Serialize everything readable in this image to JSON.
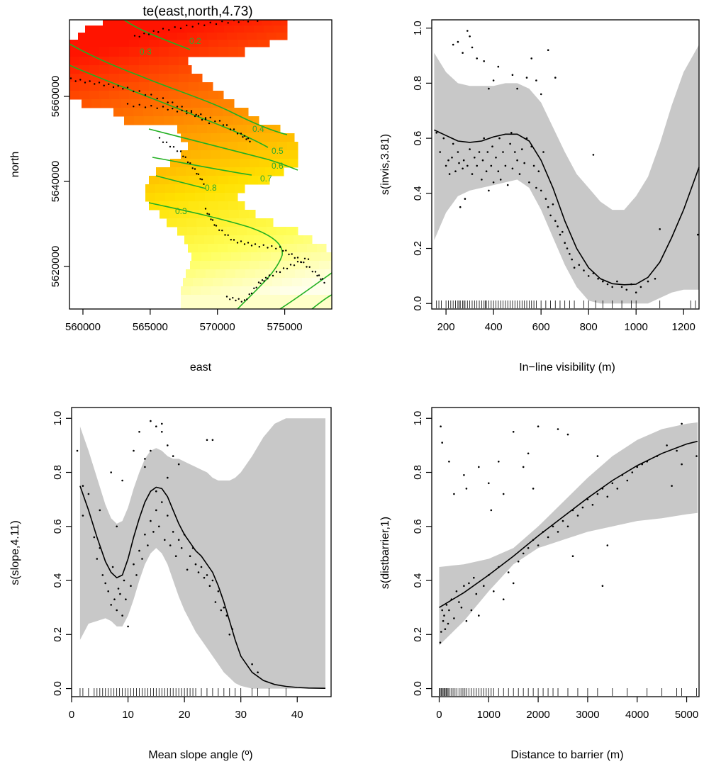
{
  "chart_data": [
    {
      "type": "heatmap",
      "title": "te(east,north,4.73)",
      "xlabel": "east",
      "ylabel": "north",
      "xlim": [
        559000,
        578500
      ],
      "ylim": [
        5610000,
        5678000
      ],
      "xticks": [
        560000,
        565000,
        570000,
        575000
      ],
      "xtick_labels": [
        "560000",
        "565000",
        "570000",
        "575000"
      ],
      "yticks": [
        5620000,
        5640000,
        5660000
      ],
      "ytick_labels": [
        "5620000",
        "5640000",
        "5660000"
      ],
      "colors": {
        "low": "#ffffff",
        "mid": "#ffff00",
        "high": "#ff0000"
      },
      "contour_labels": [
        "0.2",
        "0.3",
        "0.4",
        "0.5",
        "0.6",
        "0.7",
        "0.8",
        "0.3"
      ],
      "grid": false
    },
    {
      "type": "line",
      "xlabel": "In−line visibility (m)",
      "ylabel": "s(invis,3.81)",
      "xlim": [
        140,
        1265
      ],
      "ylim": [
        -0.02,
        1.03
      ],
      "xticks": [
        200,
        400,
        600,
        800,
        1000,
        1200
      ],
      "xtick_labels": [
        "200",
        "400",
        "600",
        "800",
        "1000",
        "1200"
      ],
      "yticks": [
        0.0,
        0.2,
        0.4,
        0.6,
        0.8,
        1.0
      ],
      "ytick_labels": [
        "0.0",
        "0.2",
        "0.4",
        "0.6",
        "0.8",
        "1.0"
      ],
      "fit": {
        "x": [
          150,
          200,
          250,
          300,
          350,
          400,
          450,
          500,
          550,
          600,
          650,
          700,
          750,
          800,
          850,
          900,
          950,
          1000,
          1050,
          1100,
          1150,
          1200,
          1265
        ],
        "y": [
          0.63,
          0.61,
          0.59,
          0.585,
          0.59,
          0.605,
          0.615,
          0.615,
          0.59,
          0.52,
          0.42,
          0.3,
          0.2,
          0.13,
          0.09,
          0.072,
          0.068,
          0.07,
          0.095,
          0.15,
          0.24,
          0.34,
          0.495
        ]
      },
      "band_upper": [
        0.91,
        0.84,
        0.8,
        0.79,
        0.79,
        0.79,
        0.8,
        0.8,
        0.78,
        0.73,
        0.64,
        0.55,
        0.47,
        0.42,
        0.37,
        0.34,
        0.34,
        0.39,
        0.46,
        0.58,
        0.72,
        0.84,
        0.94
      ],
      "band_lower": [
        0.23,
        0.33,
        0.39,
        0.41,
        0.42,
        0.43,
        0.44,
        0.45,
        0.42,
        0.34,
        0.24,
        0.14,
        0.06,
        0.01,
        0.0,
        0.0,
        0.0,
        0.0,
        0.0,
        0.02,
        0.04,
        0.05,
        0.05
      ],
      "points": {
        "x": [
          160,
          175,
          190,
          200,
          210,
          215,
          225,
          230,
          240,
          250,
          255,
          260,
          270,
          275,
          280,
          290,
          300,
          310,
          320,
          330,
          340,
          350,
          355,
          360,
          370,
          375,
          380,
          390,
          395,
          400,
          410,
          420,
          425,
          430,
          440,
          450,
          460,
          470,
          475,
          480,
          490,
          500,
          510,
          520,
          530,
          540,
          550,
          560,
          570,
          580,
          590,
          600,
          610,
          620,
          630,
          640,
          650,
          660,
          670,
          680,
          690,
          700,
          710,
          720,
          730,
          740,
          760,
          780,
          800,
          820,
          840,
          860,
          880,
          900,
          920,
          940,
          960,
          980,
          1000,
          1020,
          1050,
          1080,
          1100,
          1260,
          230,
          250,
          270,
          290,
          300,
          310,
          330,
          360,
          380,
          400,
          420,
          480,
          500,
          540,
          560,
          580,
          600,
          630,
          660,
          820
        ],
        "y": [
          0.62,
          0.55,
          0.6,
          0.5,
          0.52,
          0.47,
          0.53,
          0.58,
          0.48,
          0.55,
          0.51,
          0.35,
          0.49,
          0.52,
          0.38,
          0.5,
          0.56,
          0.47,
          0.53,
          0.5,
          0.55,
          0.45,
          0.52,
          0.6,
          0.48,
          0.55,
          0.41,
          0.5,
          0.57,
          0.44,
          0.53,
          0.48,
          0.6,
          0.45,
          0.55,
          0.5,
          0.43,
          0.58,
          0.62,
          0.49,
          0.55,
          0.52,
          0.47,
          0.56,
          0.51,
          0.6,
          0.44,
          0.57,
          0.5,
          0.42,
          0.48,
          0.41,
          0.55,
          0.38,
          0.35,
          0.32,
          0.36,
          0.3,
          0.28,
          0.25,
          0.26,
          0.22,
          0.2,
          0.18,
          0.16,
          0.13,
          0.14,
          0.12,
          0.1,
          0.11,
          0.09,
          0.08,
          0.07,
          0.06,
          0.08,
          0.06,
          0.05,
          0.07,
          0.04,
          0.06,
          0.08,
          0.09,
          0.27,
          0.25,
          0.94,
          0.95,
          0.91,
          0.99,
          0.97,
          0.93,
          0.89,
          0.88,
          0.78,
          0.81,
          0.86,
          0.83,
          0.78,
          0.82,
          0.89,
          0.81,
          0.76,
          0.92,
          0.82,
          0.54
        ]
      },
      "rug": [
        160,
        170,
        180,
        200,
        210,
        220,
        230,
        240,
        250,
        255,
        260,
        270,
        275,
        280,
        290,
        300,
        310,
        320,
        330,
        340,
        350,
        360,
        365,
        370,
        380,
        390,
        400,
        410,
        420,
        430,
        440,
        450,
        460,
        470,
        480,
        490,
        500,
        510,
        520,
        530,
        540,
        550,
        560,
        570,
        580,
        600,
        620,
        640,
        660,
        680,
        700,
        720,
        740,
        780,
        800,
        830,
        860,
        900,
        940,
        980,
        1000,
        1100,
        1230,
        1250
      ]
    },
    {
      "type": "line",
      "xlabel": "Mean slope angle (º)",
      "ylabel": "s(slope,4.11)",
      "xlim": [
        0,
        46
      ],
      "ylim": [
        -0.03,
        1.04
      ],
      "xticks": [
        0,
        10,
        20,
        30,
        40
      ],
      "xtick_labels": [
        "0",
        "10",
        "20",
        "30",
        "40"
      ],
      "yticks": [
        0.0,
        0.2,
        0.4,
        0.6,
        0.8,
        1.0
      ],
      "ytick_labels": [
        "0.0",
        "0.2",
        "0.4",
        "0.6",
        "0.8",
        "1.0"
      ],
      "fit": {
        "x": [
          1.5,
          3,
          4.5,
          6,
          7,
          8,
          9,
          10,
          11,
          12,
          13,
          14,
          15,
          16,
          17,
          18,
          19,
          20,
          21,
          22,
          23,
          24,
          25,
          26,
          27,
          28,
          29,
          30,
          32,
          34,
          36,
          38,
          40,
          42,
          45
        ],
        "y": [
          0.75,
          0.66,
          0.56,
          0.47,
          0.43,
          0.41,
          0.42,
          0.48,
          0.56,
          0.63,
          0.69,
          0.73,
          0.745,
          0.74,
          0.71,
          0.66,
          0.61,
          0.57,
          0.54,
          0.51,
          0.49,
          0.46,
          0.43,
          0.38,
          0.32,
          0.25,
          0.18,
          0.12,
          0.06,
          0.03,
          0.015,
          0.008,
          0.004,
          0.002,
          0.001
        ]
      },
      "band_upper": [
        0.97,
        0.88,
        0.78,
        0.68,
        0.63,
        0.61,
        0.62,
        0.67,
        0.74,
        0.8,
        0.85,
        0.88,
        0.89,
        0.88,
        0.86,
        0.85,
        0.85,
        0.84,
        0.83,
        0.82,
        0.81,
        0.8,
        0.78,
        0.77,
        0.77,
        0.77,
        0.78,
        0.8,
        0.86,
        0.93,
        0.98,
        1.0,
        1.0,
        1.0,
        1.0
      ],
      "band_lower": [
        0.18,
        0.24,
        0.25,
        0.26,
        0.25,
        0.23,
        0.23,
        0.27,
        0.33,
        0.4,
        0.46,
        0.5,
        0.52,
        0.5,
        0.46,
        0.4,
        0.34,
        0.29,
        0.25,
        0.21,
        0.18,
        0.15,
        0.12,
        0.09,
        0.06,
        0.04,
        0.02,
        0.01,
        0.0,
        0.0,
        0.0,
        0.0,
        0.0,
        0.0,
        0.0
      ],
      "points": {
        "x": [
          1,
          2,
          3,
          4,
          4.5,
          5,
          5.5,
          6,
          6.5,
          7,
          7.3,
          7.6,
          8,
          8.3,
          8.6,
          9,
          9.3,
          9.6,
          10,
          10.5,
          11,
          11.5,
          12,
          12.5,
          13,
          13.5,
          14,
          14.5,
          15,
          15.5,
          16,
          16.5,
          17,
          17.5,
          18,
          18.5,
          19,
          19.5,
          20,
          20.5,
          21,
          21.5,
          22,
          22.5,
          23,
          23.5,
          24,
          24.5,
          25,
          25.5,
          26,
          26.5,
          27,
          27.5,
          28,
          28.5,
          32,
          33,
          2,
          5,
          7,
          9,
          11,
          12,
          13,
          14,
          15,
          16,
          17,
          18,
          19,
          24,
          25,
          13,
          14,
          15,
          16,
          17,
          8
        ],
        "y": [
          0.88,
          0.64,
          0.72,
          0.56,
          0.48,
          0.52,
          0.42,
          0.39,
          0.36,
          0.31,
          0.45,
          0.33,
          0.29,
          0.37,
          0.35,
          0.27,
          0.4,
          0.33,
          0.23,
          0.38,
          0.46,
          0.42,
          0.51,
          0.48,
          0.57,
          0.53,
          0.62,
          0.58,
          0.66,
          0.6,
          0.69,
          0.55,
          0.64,
          0.53,
          0.58,
          0.49,
          0.55,
          0.52,
          0.57,
          0.44,
          0.49,
          0.52,
          0.46,
          0.43,
          0.45,
          0.41,
          0.42,
          0.38,
          0.4,
          0.32,
          0.36,
          0.29,
          0.3,
          0.27,
          0.2,
          0.22,
          0.09,
          0.06,
          0.75,
          0.66,
          0.8,
          0.77,
          0.88,
          0.95,
          0.85,
          0.99,
          0.97,
          0.95,
          0.9,
          0.86,
          0.83,
          0.92,
          0.92,
          0.82,
          0.88,
          0.73,
          0.98,
          0.78,
          0.6
        ],
        "y_check": []
      },
      "rug": [
        1.5,
        2,
        3,
        4,
        4.5,
        5,
        5.5,
        6,
        6.5,
        7,
        7.5,
        8,
        8.5,
        9,
        9.5,
        10,
        10.5,
        11,
        11.5,
        12,
        12.5,
        13,
        13.5,
        14,
        14.5,
        15,
        15.5,
        16,
        16.5,
        17,
        17.5,
        18,
        18.5,
        19,
        19.5,
        20,
        20.5,
        21,
        21.5,
        22,
        23,
        24,
        25,
        26,
        27,
        28,
        29,
        30,
        32,
        33,
        35,
        38
      ]
    },
    {
      "type": "line",
      "xlabel": "Distance to barrier (m)",
      "ylabel": "s(distbarrier,1)",
      "xlim": [
        -150,
        5250
      ],
      "ylim": [
        -0.03,
        1.04
      ],
      "xticks": [
        0,
        1000,
        2000,
        3000,
        4000,
        5000
      ],
      "xtick_labels": [
        "0",
        "1000",
        "2000",
        "3000",
        "4000",
        "5000"
      ],
      "yticks": [
        0.0,
        0.2,
        0.4,
        0.6,
        0.8,
        1.0
      ],
      "ytick_labels": [
        "0.0",
        "0.2",
        "0.4",
        "0.6",
        "0.8",
        "1.0"
      ],
      "fit": {
        "x": [
          0,
          500,
          1000,
          1500,
          2000,
          2500,
          3000,
          3500,
          4000,
          4500,
          5000,
          5220
        ],
        "y": [
          0.3,
          0.355,
          0.42,
          0.49,
          0.565,
          0.635,
          0.705,
          0.77,
          0.825,
          0.87,
          0.905,
          0.915
        ]
      },
      "band_upper": [
        0.45,
        0.46,
        0.48,
        0.52,
        0.6,
        0.69,
        0.78,
        0.86,
        0.92,
        0.96,
        0.98,
        0.985
      ],
      "band_lower": [
        0.16,
        0.25,
        0.36,
        0.46,
        0.52,
        0.55,
        0.58,
        0.6,
        0.62,
        0.63,
        0.645,
        0.65
      ],
      "points": {
        "x": [
          20,
          40,
          60,
          80,
          100,
          120,
          150,
          180,
          200,
          250,
          300,
          350,
          400,
          450,
          500,
          550,
          600,
          650,
          700,
          750,
          800,
          900,
          1000,
          1100,
          1200,
          1300,
          1400,
          1500,
          1600,
          1700,
          1800,
          1900,
          2000,
          2100,
          2200,
          2300,
          2400,
          2500,
          2600,
          2700,
          2800,
          2900,
          3000,
          3100,
          3200,
          3300,
          3400,
          3500,
          3600,
          3700,
          3800,
          3900,
          4000,
          4100,
          4200,
          4400,
          4600,
          4800,
          4900,
          5200,
          30,
          60,
          200,
          300,
          500,
          550,
          800,
          1000,
          1050,
          1200,
          1300,
          1500,
          1700,
          1800,
          1900,
          2000,
          2400,
          2600,
          3200,
          3400,
          4700,
          4900,
          2700,
          3300
        ],
        "y": [
          0.17,
          0.21,
          0.29,
          0.25,
          0.27,
          0.22,
          0.31,
          0.24,
          0.29,
          0.33,
          0.26,
          0.36,
          0.32,
          0.3,
          0.38,
          0.25,
          0.39,
          0.29,
          0.41,
          0.35,
          0.27,
          0.38,
          0.42,
          0.36,
          0.45,
          0.33,
          0.43,
          0.39,
          0.47,
          0.5,
          0.52,
          0.55,
          0.53,
          0.58,
          0.56,
          0.6,
          0.58,
          0.62,
          0.6,
          0.66,
          0.64,
          0.67,
          0.7,
          0.68,
          0.72,
          0.74,
          0.71,
          0.76,
          0.74,
          0.79,
          0.77,
          0.8,
          0.82,
          0.83,
          0.84,
          0.86,
          0.9,
          0.88,
          0.83,
          0.86,
          0.97,
          0.91,
          0.84,
          0.72,
          0.79,
          0.74,
          0.82,
          0.76,
          0.66,
          0.84,
          0.72,
          0.95,
          0.82,
          0.87,
          0.74,
          0.97,
          0.96,
          0.94,
          0.86,
          0.53,
          0.75,
          0.98,
          0.49,
          0.38
        ]
      },
      "rug": [
        0,
        20,
        40,
        60,
        80,
        100,
        120,
        140,
        160,
        180,
        200,
        240,
        280,
        320,
        360,
        400,
        440,
        480,
        520,
        560,
        600,
        650,
        700,
        750,
        800,
        850,
        900,
        950,
        1000,
        1050,
        1100,
        1200,
        1300,
        1400,
        1500,
        1600,
        1700,
        1800,
        1900,
        2000,
        2100,
        2200,
        2300,
        2400,
        2600,
        2800,
        3000,
        3200,
        3500,
        3800,
        4200,
        4500,
        4800,
        4900,
        5200
      ]
    }
  ]
}
